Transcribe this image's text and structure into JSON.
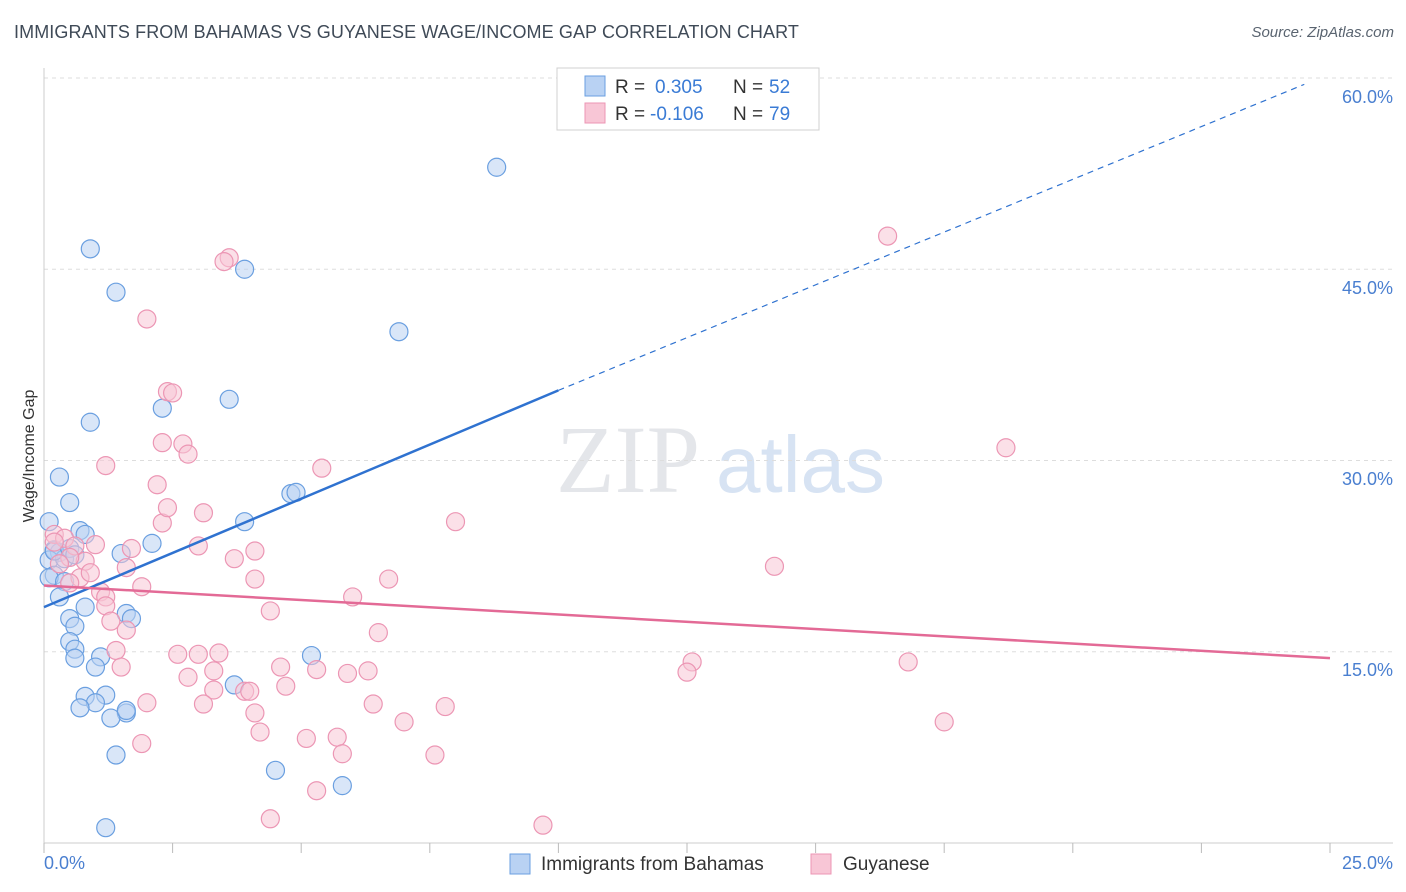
{
  "title": "IMMIGRANTS FROM BAHAMAS VS GUYANESE WAGE/INCOME GAP CORRELATION CHART",
  "source": "Source: ZipAtlas.com",
  "watermark": {
    "zip": "ZIP",
    "atlas": "atlas"
  },
  "colors": {
    "blue_fill": "#b9d2f3",
    "blue_stroke": "#6a9fe0",
    "blue_line": "#2f72d0",
    "pink_fill": "#f8c6d6",
    "pink_stroke": "#ec96b4",
    "pink_line": "#e36a96",
    "grid": "#dddddd",
    "axis_text": "#4a7fd0"
  },
  "legend": {
    "rows": [
      {
        "r_label": "R =",
        "r_value": "0.305",
        "n_label": "N =",
        "n_value": "52"
      },
      {
        "r_label": "R =",
        "r_value": "-0.106",
        "n_label": "N =",
        "n_value": "79"
      }
    ]
  },
  "bottom_legend": [
    "Immigrants from Bahamas",
    "Guyanese"
  ],
  "chart_data": {
    "type": "scatter",
    "xlabel": "",
    "ylabel": "Wage/Income Gap",
    "xlim": [
      0,
      25
    ],
    "ylim": [
      0,
      60
    ],
    "x_tick_labels": [
      "0.0%",
      "25.0%"
    ],
    "y_ticks": [
      15,
      30,
      45,
      60
    ],
    "y_tick_labels": [
      "15.0%",
      "30.0%",
      "45.0%",
      "60.0%"
    ],
    "series": [
      {
        "name": "Immigrants from Bahamas",
        "color": "blue",
        "trend": {
          "x0": 0.0,
          "y0": 18.5,
          "x1": 10.0,
          "y1": 35.5,
          "dash_to_x": 24.5,
          "dash_to_y": 59.5
        },
        "points": [
          [
            8.8,
            53.0
          ],
          [
            0.9,
            46.6
          ],
          [
            3.9,
            45.0
          ],
          [
            1.4,
            43.2
          ],
          [
            6.9,
            40.1
          ],
          [
            2.3,
            34.1
          ],
          [
            3.6,
            34.8
          ],
          [
            0.9,
            33.0
          ],
          [
            0.3,
            28.7
          ],
          [
            0.5,
            26.7
          ],
          [
            4.8,
            27.4
          ],
          [
            4.9,
            27.5
          ],
          [
            3.9,
            25.2
          ],
          [
            0.1,
            25.2
          ],
          [
            0.7,
            24.5
          ],
          [
            0.8,
            24.2
          ],
          [
            2.1,
            23.5
          ],
          [
            0.2,
            23.0
          ],
          [
            0.3,
            22.8
          ],
          [
            1.5,
            22.7
          ],
          [
            0.1,
            22.2
          ],
          [
            0.4,
            22.3
          ],
          [
            0.2,
            21.0
          ],
          [
            0.1,
            20.8
          ],
          [
            0.4,
            20.5
          ],
          [
            0.3,
            19.3
          ],
          [
            0.8,
            18.5
          ],
          [
            0.5,
            17.6
          ],
          [
            0.6,
            17.0
          ],
          [
            1.6,
            18.0
          ],
          [
            1.7,
            17.6
          ],
          [
            0.5,
            15.8
          ],
          [
            0.6,
            15.2
          ],
          [
            0.6,
            14.5
          ],
          [
            1.1,
            14.6
          ],
          [
            1.0,
            13.8
          ],
          [
            5.2,
            14.7
          ],
          [
            3.7,
            12.4
          ],
          [
            0.8,
            11.5
          ],
          [
            1.2,
            11.6
          ],
          [
            1.0,
            11.0
          ],
          [
            0.7,
            10.6
          ],
          [
            1.6,
            10.2
          ],
          [
            1.3,
            9.8
          ],
          [
            1.6,
            10.4
          ],
          [
            1.4,
            6.9
          ],
          [
            4.5,
            5.7
          ],
          [
            5.8,
            4.5
          ],
          [
            1.2,
            1.2
          ],
          [
            0.2,
            22.9
          ],
          [
            0.5,
            23.1
          ],
          [
            0.6,
            22.6
          ]
        ]
      },
      {
        "name": "Guyanese",
        "color": "pink",
        "trend": {
          "x0": 0.0,
          "y0": 20.2,
          "x1": 25.0,
          "y1": 14.5
        },
        "points": [
          [
            3.6,
            45.9
          ],
          [
            3.5,
            45.6
          ],
          [
            16.4,
            47.6
          ],
          [
            2.0,
            41.1
          ],
          [
            2.4,
            35.4
          ],
          [
            2.5,
            35.3
          ],
          [
            2.3,
            31.4
          ],
          [
            2.7,
            31.3
          ],
          [
            2.8,
            30.5
          ],
          [
            1.2,
            29.6
          ],
          [
            5.4,
            29.4
          ],
          [
            18.7,
            31.0
          ],
          [
            2.2,
            28.1
          ],
          [
            3.1,
            25.9
          ],
          [
            2.3,
            25.1
          ],
          [
            8.0,
            25.2
          ],
          [
            0.2,
            24.2
          ],
          [
            0.4,
            23.9
          ],
          [
            0.2,
            23.6
          ],
          [
            0.6,
            23.3
          ],
          [
            1.0,
            23.4
          ],
          [
            3.0,
            23.3
          ],
          [
            1.7,
            23.1
          ],
          [
            4.1,
            22.9
          ],
          [
            3.7,
            22.3
          ],
          [
            0.8,
            22.1
          ],
          [
            0.5,
            22.4
          ],
          [
            0.3,
            21.9
          ],
          [
            14.2,
            21.7
          ],
          [
            1.6,
            21.6
          ],
          [
            0.7,
            20.8
          ],
          [
            4.1,
            20.7
          ],
          [
            6.7,
            20.7
          ],
          [
            1.9,
            20.1
          ],
          [
            0.5,
            20.4
          ],
          [
            1.1,
            19.7
          ],
          [
            1.2,
            19.3
          ],
          [
            6.0,
            19.3
          ],
          [
            1.2,
            18.6
          ],
          [
            4.4,
            18.2
          ],
          [
            1.3,
            17.4
          ],
          [
            1.6,
            16.7
          ],
          [
            6.5,
            16.5
          ],
          [
            1.4,
            15.1
          ],
          [
            2.6,
            14.8
          ],
          [
            3.0,
            14.8
          ],
          [
            3.4,
            14.9
          ],
          [
            12.6,
            14.2
          ],
          [
            16.8,
            14.2
          ],
          [
            12.5,
            13.4
          ],
          [
            1.5,
            13.8
          ],
          [
            4.6,
            13.8
          ],
          [
            5.3,
            13.6
          ],
          [
            5.9,
            13.3
          ],
          [
            6.3,
            13.5
          ],
          [
            3.3,
            13.5
          ],
          [
            2.8,
            13.0
          ],
          [
            4.7,
            12.3
          ],
          [
            3.9,
            11.9
          ],
          [
            4.0,
            11.9
          ],
          [
            3.3,
            12.0
          ],
          [
            2.0,
            11.0
          ],
          [
            3.1,
            10.9
          ],
          [
            6.4,
            10.9
          ],
          [
            7.8,
            10.7
          ],
          [
            4.1,
            10.2
          ],
          [
            7.0,
            9.5
          ],
          [
            17.5,
            9.5
          ],
          [
            4.2,
            8.7
          ],
          [
            5.1,
            8.2
          ],
          [
            5.7,
            8.3
          ],
          [
            1.9,
            7.8
          ],
          [
            5.8,
            7.0
          ],
          [
            7.6,
            6.9
          ],
          [
            5.3,
            4.1
          ],
          [
            4.4,
            1.9
          ],
          [
            9.7,
            1.4
          ],
          [
            2.4,
            26.3
          ],
          [
            0.9,
            21.2
          ]
        ]
      }
    ]
  }
}
